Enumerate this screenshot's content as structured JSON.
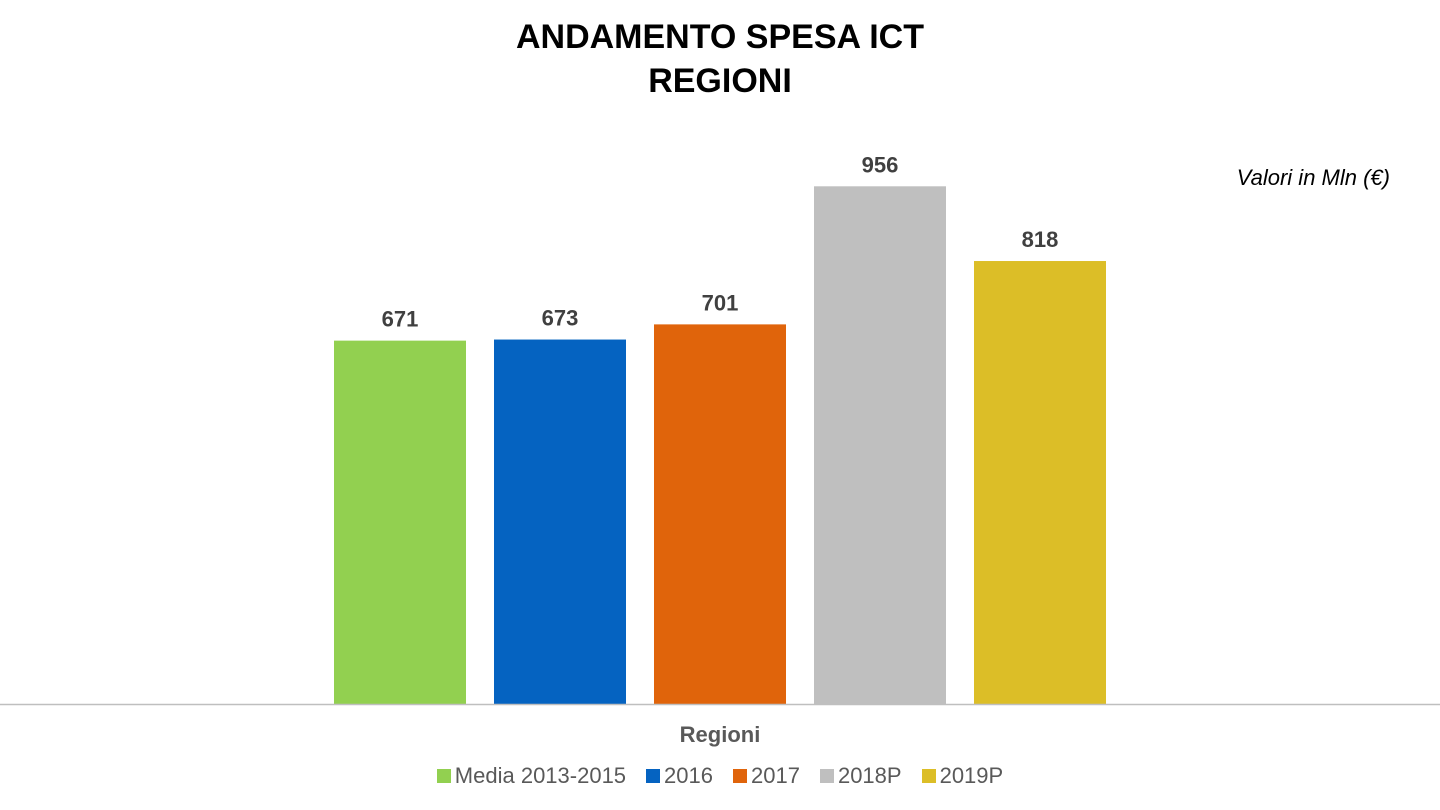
{
  "chart_data": {
    "type": "bar",
    "title": [
      "ANDAMENTO SPESA ICT",
      "REGIONI"
    ],
    "units_note": "Valori in Mln (€)",
    "categories": [
      "Regioni"
    ],
    "xlabel": "Regioni",
    "ylim": [
      0,
      1300
    ],
    "grid": false,
    "legend_position": "bottom",
    "data_labels": true,
    "series": [
      {
        "name": "Media 2013-2015",
        "values": [
          671
        ],
        "color": "#92D050"
      },
      {
        "name": "2016",
        "values": [
          673
        ],
        "color": "#0563C1"
      },
      {
        "name": "2017",
        "values": [
          701
        ],
        "color": "#E0640B"
      },
      {
        "name": "2018P",
        "values": [
          956
        ],
        "color": "#BFBFBF"
      },
      {
        "name": "2019P",
        "values": [
          818
        ],
        "color": "#DCBE27"
      }
    ]
  }
}
